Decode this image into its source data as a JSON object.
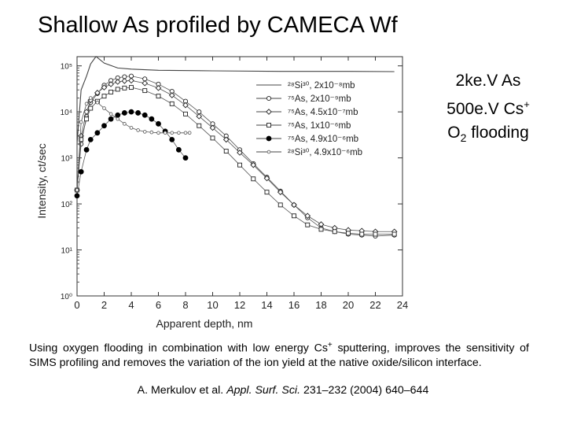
{
  "title": "Shallow As profiled by CAMECA Wf",
  "params": {
    "line1": "2ke.V As",
    "line2_main": "500e.V Cs",
    "line2_sup": "+",
    "line3_a": "O",
    "line3_sub": "2",
    "line3_b": " flooding"
  },
  "caption": {
    "p1": "Using oxygen flooding in combination with low energy Cs",
    "p1_sup": "+",
    "p2": " sputtering, improves the sensitivity of SIMS profiling and removes the variation of the ion yield at the native oxide/silicon interface."
  },
  "reference": {
    "authors": "A. Merkulov et al. ",
    "journal": "Appl. Surf. Sci.",
    "rest": " 231–232 (2004) 640–644"
  },
  "chart_data": {
    "type": "line",
    "xlabel": "Apparent depth, nm",
    "ylabel": "Intensity, ct/sec",
    "xlim": [
      0,
      24
    ],
    "ylim_log10": [
      0,
      5.2
    ],
    "x_ticks": [
      0,
      2,
      4,
      6,
      8,
      10,
      12,
      14,
      16,
      18,
      20,
      22,
      24
    ],
    "y_ticks": [
      "10⁰",
      "10¹",
      "10²",
      "10³",
      "10⁴",
      "10⁵"
    ],
    "legend_position": "upper-right",
    "series": [
      {
        "name": "Si",
        "label": "²⁸Si³⁰, 2x10⁻⁸mb",
        "marker": "none",
        "x": [
          0,
          0.3,
          0.7,
          1.0,
          1.4,
          2.0,
          3.0,
          4.0,
          6.0,
          10.0,
          15.0,
          20.0,
          23.4
        ],
        "y": [
          2000,
          30000,
          60000,
          110000,
          160000,
          115000,
          90000,
          85000,
          80000,
          78000,
          76000,
          76000,
          75000
        ]
      },
      {
        "name": "As",
        "label": "⁷⁵As, 2x10⁻⁹mb",
        "marker": "circle-open",
        "x": [
          0,
          0.3,
          0.7,
          1.0,
          1.5,
          2.0,
          2.5,
          3.0,
          3.5,
          4.0,
          5.0,
          6.0,
          7.0,
          8.0,
          9.0,
          10.0,
          11.0,
          12.0,
          13.0,
          14.0,
          15.0,
          16.0,
          17.0,
          18.0,
          19.0,
          20.0,
          21.0,
          22.0,
          23.4
        ],
        "y": [
          200,
          2000,
          8000,
          16000,
          25000,
          38000,
          48000,
          55000,
          58000,
          60000,
          52000,
          40000,
          28000,
          17000,
          10000,
          5500,
          3000,
          1500,
          750,
          380,
          190,
          95,
          50,
          30,
          25,
          22,
          21,
          20,
          21
        ]
      },
      {
        "name": "As",
        "label": "⁷⁵As, 4.5x10⁻⁷mb",
        "marker": "diamond-open",
        "x": [
          0,
          0.3,
          0.7,
          1.0,
          1.5,
          2.0,
          2.5,
          3.0,
          3.5,
          4.0,
          5.0,
          6.0,
          7.0,
          8.0,
          9.0,
          10.0,
          11.0,
          12.0,
          13.0,
          14.0,
          15.0,
          16.0,
          17.0,
          18.0,
          19.0,
          20.0,
          21.0,
          22.0,
          23.4
        ],
        "y": [
          200,
          3000,
          10000,
          18000,
          26000,
          34000,
          40000,
          45000,
          47000,
          48000,
          42000,
          33000,
          23000,
          14000,
          8000,
          4500,
          2500,
          1300,
          700,
          360,
          180,
          95,
          55,
          36,
          30,
          27,
          26,
          25,
          25
        ]
      },
      {
        "name": "As",
        "label": "⁷⁵As, 1x10⁻⁶mb",
        "marker": "square-open",
        "x": [
          0,
          0.3,
          0.7,
          1.0,
          1.5,
          2.0,
          2.5,
          3.0,
          3.5,
          4.0,
          5.0,
          6.0,
          7.0,
          8.0,
          9.0,
          10.0,
          11.0,
          12.0,
          13.0,
          14.0,
          15.0,
          16.0,
          17.0,
          18.0,
          19.0,
          20.0,
          21.0,
          22.0,
          23.4
        ],
        "y": [
          200,
          2500,
          7000,
          12000,
          17000,
          22000,
          27000,
          31000,
          33000,
          34000,
          29000,
          22000,
          15000,
          9000,
          5000,
          2700,
          1400,
          700,
          350,
          180,
          95,
          55,
          35,
          28,
          25,
          23,
          22,
          22,
          22
        ]
      },
      {
        "name": "As",
        "label": "⁷⁵As, 4.9x10⁻⁶mb",
        "marker": "circle-filled",
        "x": [
          0,
          0.3,
          0.7,
          1.0,
          1.5,
          2.0,
          2.5,
          3.0,
          3.5,
          4.0,
          4.5,
          5.0,
          5.5,
          6.0,
          6.5,
          7.0,
          7.5,
          8.0
        ],
        "y": [
          150,
          500,
          1500,
          2500,
          3500,
          5000,
          7000,
          8500,
          9500,
          10000,
          9500,
          8500,
          7000,
          5500,
          3800,
          2500,
          1500,
          1000
        ]
      },
      {
        "name": "Si",
        "label": "²⁸Si³⁰, 4.9x10⁻⁶mb",
        "marker": "circle-small-open",
        "x": [
          0,
          0.3,
          0.7,
          1.0,
          1.5,
          2.0,
          2.5,
          3.0,
          3.5,
          4.0,
          4.5,
          5.0,
          5.5,
          6.0,
          6.5,
          7.0,
          7.5,
          8.0,
          8.3
        ],
        "y": [
          200,
          6000,
          15000,
          20000,
          16000,
          12000,
          9000,
          7000,
          5500,
          4500,
          4000,
          3700,
          3600,
          3500,
          3500,
          3500,
          3500,
          3500,
          3500
        ]
      }
    ]
  }
}
